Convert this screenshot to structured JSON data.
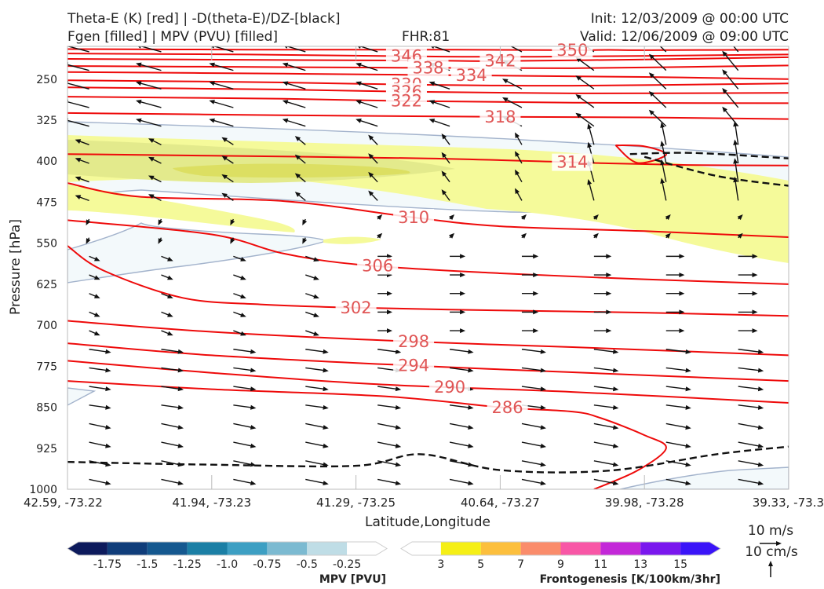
{
  "header": {
    "title_line1": "Theta-E (K) [red] | -D(theta-E)/DZ-[black]",
    "title_line2": "Fgen [filled] | MPV (PVU) [filled]",
    "fhr": "FHR:81",
    "init": "Init: 12/03/2009 @ 00:00 UTC",
    "valid": "Valid: 12/06/2009 @ 09:00 UTC"
  },
  "chart_data": {
    "type": "cross-section",
    "xlabel": "Latitude,Longitude",
    "ylabel": "Pressure [hPa]",
    "x_ticks": [
      "42.59, -73.22",
      "41.94, -73.23",
      "41.29, -73.25",
      "40.64, -73.27",
      "39.98, -73.28",
      "39.33, -73.3"
    ],
    "y_ticks": [
      250,
      325,
      400,
      475,
      550,
      625,
      700,
      775,
      850,
      925,
      1000
    ],
    "ylim": [
      1000,
      190
    ],
    "theta_e_contours": [
      {
        "label": "350",
        "points": [
          [
            0,
            195
          ],
          [
            0.25,
            196
          ],
          [
            0.5,
            196
          ],
          [
            0.7,
            197
          ],
          [
            0.75,
            196.5
          ],
          [
            0.8,
            197
          ],
          [
            1,
            196
          ]
        ]
      },
      {
        "label": "346",
        "points": [
          [
            0,
            203
          ],
          [
            0.25,
            205
          ],
          [
            0.46,
            208
          ],
          [
            0.65,
            209
          ],
          [
            1,
            205
          ]
        ]
      },
      {
        "label": "342",
        "points": [
          [
            0,
            213
          ],
          [
            0.3,
            215
          ],
          [
            0.5,
            216
          ],
          [
            0.59,
            217
          ],
          [
            0.8,
            214
          ],
          [
            1,
            210
          ]
        ]
      },
      {
        "label": "338",
        "points": [
          [
            0,
            226
          ],
          [
            0.3,
            228
          ],
          [
            0.46,
            229
          ],
          [
            0.7,
            230
          ],
          [
            1,
            225
          ]
        ]
      },
      {
        "label": "334",
        "points": [
          [
            0,
            237
          ],
          [
            0.3,
            240
          ],
          [
            0.55,
            243
          ],
          [
            0.8,
            246
          ],
          [
            1,
            250
          ]
        ]
      },
      {
        "label": "330",
        "points": [
          [
            0,
            252
          ],
          [
            0.3,
            256
          ],
          [
            0.47,
            260
          ],
          [
            0.7,
            262
          ],
          [
            1,
            258
          ]
        ]
      },
      {
        "label": "326",
        "points": [
          [
            0,
            265
          ],
          [
            0.3,
            269
          ],
          [
            0.47,
            273
          ],
          [
            0.7,
            276
          ],
          [
            1,
            275
          ]
        ]
      },
      {
        "label": "322",
        "points": [
          [
            0,
            282
          ],
          [
            0.3,
            286
          ],
          [
            0.47,
            290
          ],
          [
            0.7,
            293
          ],
          [
            1,
            294
          ]
        ]
      },
      {
        "label": "318",
        "points": [
          [
            0,
            312
          ],
          [
            0.3,
            316
          ],
          [
            0.6,
            319
          ],
          [
            0.8,
            320
          ],
          [
            1,
            323
          ]
        ]
      },
      {
        "label": "314",
        "points": [
          [
            0,
            387
          ],
          [
            0.2,
            390
          ],
          [
            0.5,
            395
          ],
          [
            0.7,
            402
          ],
          [
            0.75,
            404
          ],
          [
            0.86,
            407
          ],
          [
            1,
            408
          ]
        ]
      },
      {
        "label": "310",
        "points": [
          [
            0,
            440
          ],
          [
            0.1,
            465
          ],
          [
            0.3,
            473
          ],
          [
            0.48,
            503
          ],
          [
            0.6,
            519
          ],
          [
            0.8,
            528
          ],
          [
            1,
            539
          ]
        ]
      },
      {
        "label": "306",
        "points": [
          [
            0,
            508
          ],
          [
            0.2,
            534
          ],
          [
            0.3,
            569
          ],
          [
            0.41,
            590
          ],
          [
            0.6,
            605
          ],
          [
            0.8,
            616
          ],
          [
            1,
            625
          ]
        ]
      },
      {
        "label": "302",
        "points": [
          [
            0,
            555
          ],
          [
            0.05,
            600
          ],
          [
            0.16,
            650
          ],
          [
            0.27,
            662
          ],
          [
            0.4,
            668
          ],
          [
            0.6,
            673
          ],
          [
            0.8,
            677
          ],
          [
            1,
            683
          ]
        ]
      },
      {
        "label": "298",
        "points": [
          [
            0,
            692
          ],
          [
            0.2,
            712
          ],
          [
            0.48,
            730
          ],
          [
            0.7,
            740
          ],
          [
            1,
            755
          ]
        ]
      },
      {
        "label": "294",
        "points": [
          [
            0,
            733
          ],
          [
            0.2,
            755
          ],
          [
            0.48,
            774
          ],
          [
            0.7,
            786
          ],
          [
            1,
            802
          ]
        ]
      },
      {
        "label": "290",
        "points": [
          [
            0,
            765
          ],
          [
            0.2,
            787
          ],
          [
            0.43,
            808
          ],
          [
            0.7,
            822
          ],
          [
            1,
            842
          ]
        ]
      },
      {
        "label": "286",
        "points": [
          [
            0,
            802
          ],
          [
            0.2,
            817
          ],
          [
            0.44,
            830
          ],
          [
            0.6,
            850
          ],
          [
            0.7,
            858
          ],
          [
            0.74,
            870
          ],
          [
            0.8,
            901
          ],
          [
            0.83,
            925
          ],
          [
            0.79,
            966
          ],
          [
            0.73,
            1000
          ]
        ]
      }
    ],
    "theta_e_closed": {
      "label": "",
      "points": [
        [
          0.76,
          371
        ],
        [
          0.8,
          373
        ],
        [
          0.83,
          388
        ],
        [
          0.79,
          403
        ],
        [
          0.76,
          371
        ]
      ]
    },
    "dthetae_dz_zero_lines": [
      {
        "points": [
          [
            0,
            950
          ],
          [
            0.2,
            955
          ],
          [
            0.4,
            957
          ],
          [
            0.49,
            936
          ],
          [
            0.6,
            965
          ],
          [
            0.75,
            966
          ],
          [
            0.9,
            936
          ],
          [
            1,
            922
          ]
        ]
      },
      {
        "points": [
          [
            0.78,
            387
          ],
          [
            0.87,
            385
          ],
          [
            1,
            395
          ]
        ]
      },
      {
        "points": [
          [
            0.8,
            392
          ],
          [
            0.9,
            427
          ],
          [
            1,
            445
          ]
        ]
      }
    ],
    "mpv_colorbar": {
      "title": "MPV [PVU]",
      "ticks": [
        "-1.75",
        "-1.5",
        "-1.25",
        "-1.0",
        "-0.75",
        "-0.5",
        "-0.25"
      ],
      "colors": [
        "#0d1a5c",
        "#103d7a",
        "#15588f",
        "#1b7fa5",
        "#3d9fc3",
        "#7cbad1",
        "#bfdde6",
        "#ffffff"
      ]
    },
    "fgen_colorbar": {
      "title": "Frontogenesis [K/100km/3hr]",
      "ticks": [
        "3",
        "5",
        "7",
        "9",
        "11",
        "13",
        "15"
      ],
      "colors": [
        "#ffffff",
        "#f5ef16",
        "#fcbf3d",
        "#fa8c6b",
        "#f857a6",
        "#c328d8",
        "#7a17ee",
        "#3a14f8"
      ]
    },
    "reference_vectors": {
      "horizontal": "10 m/s",
      "vertical": "10 cm/s"
    }
  }
}
